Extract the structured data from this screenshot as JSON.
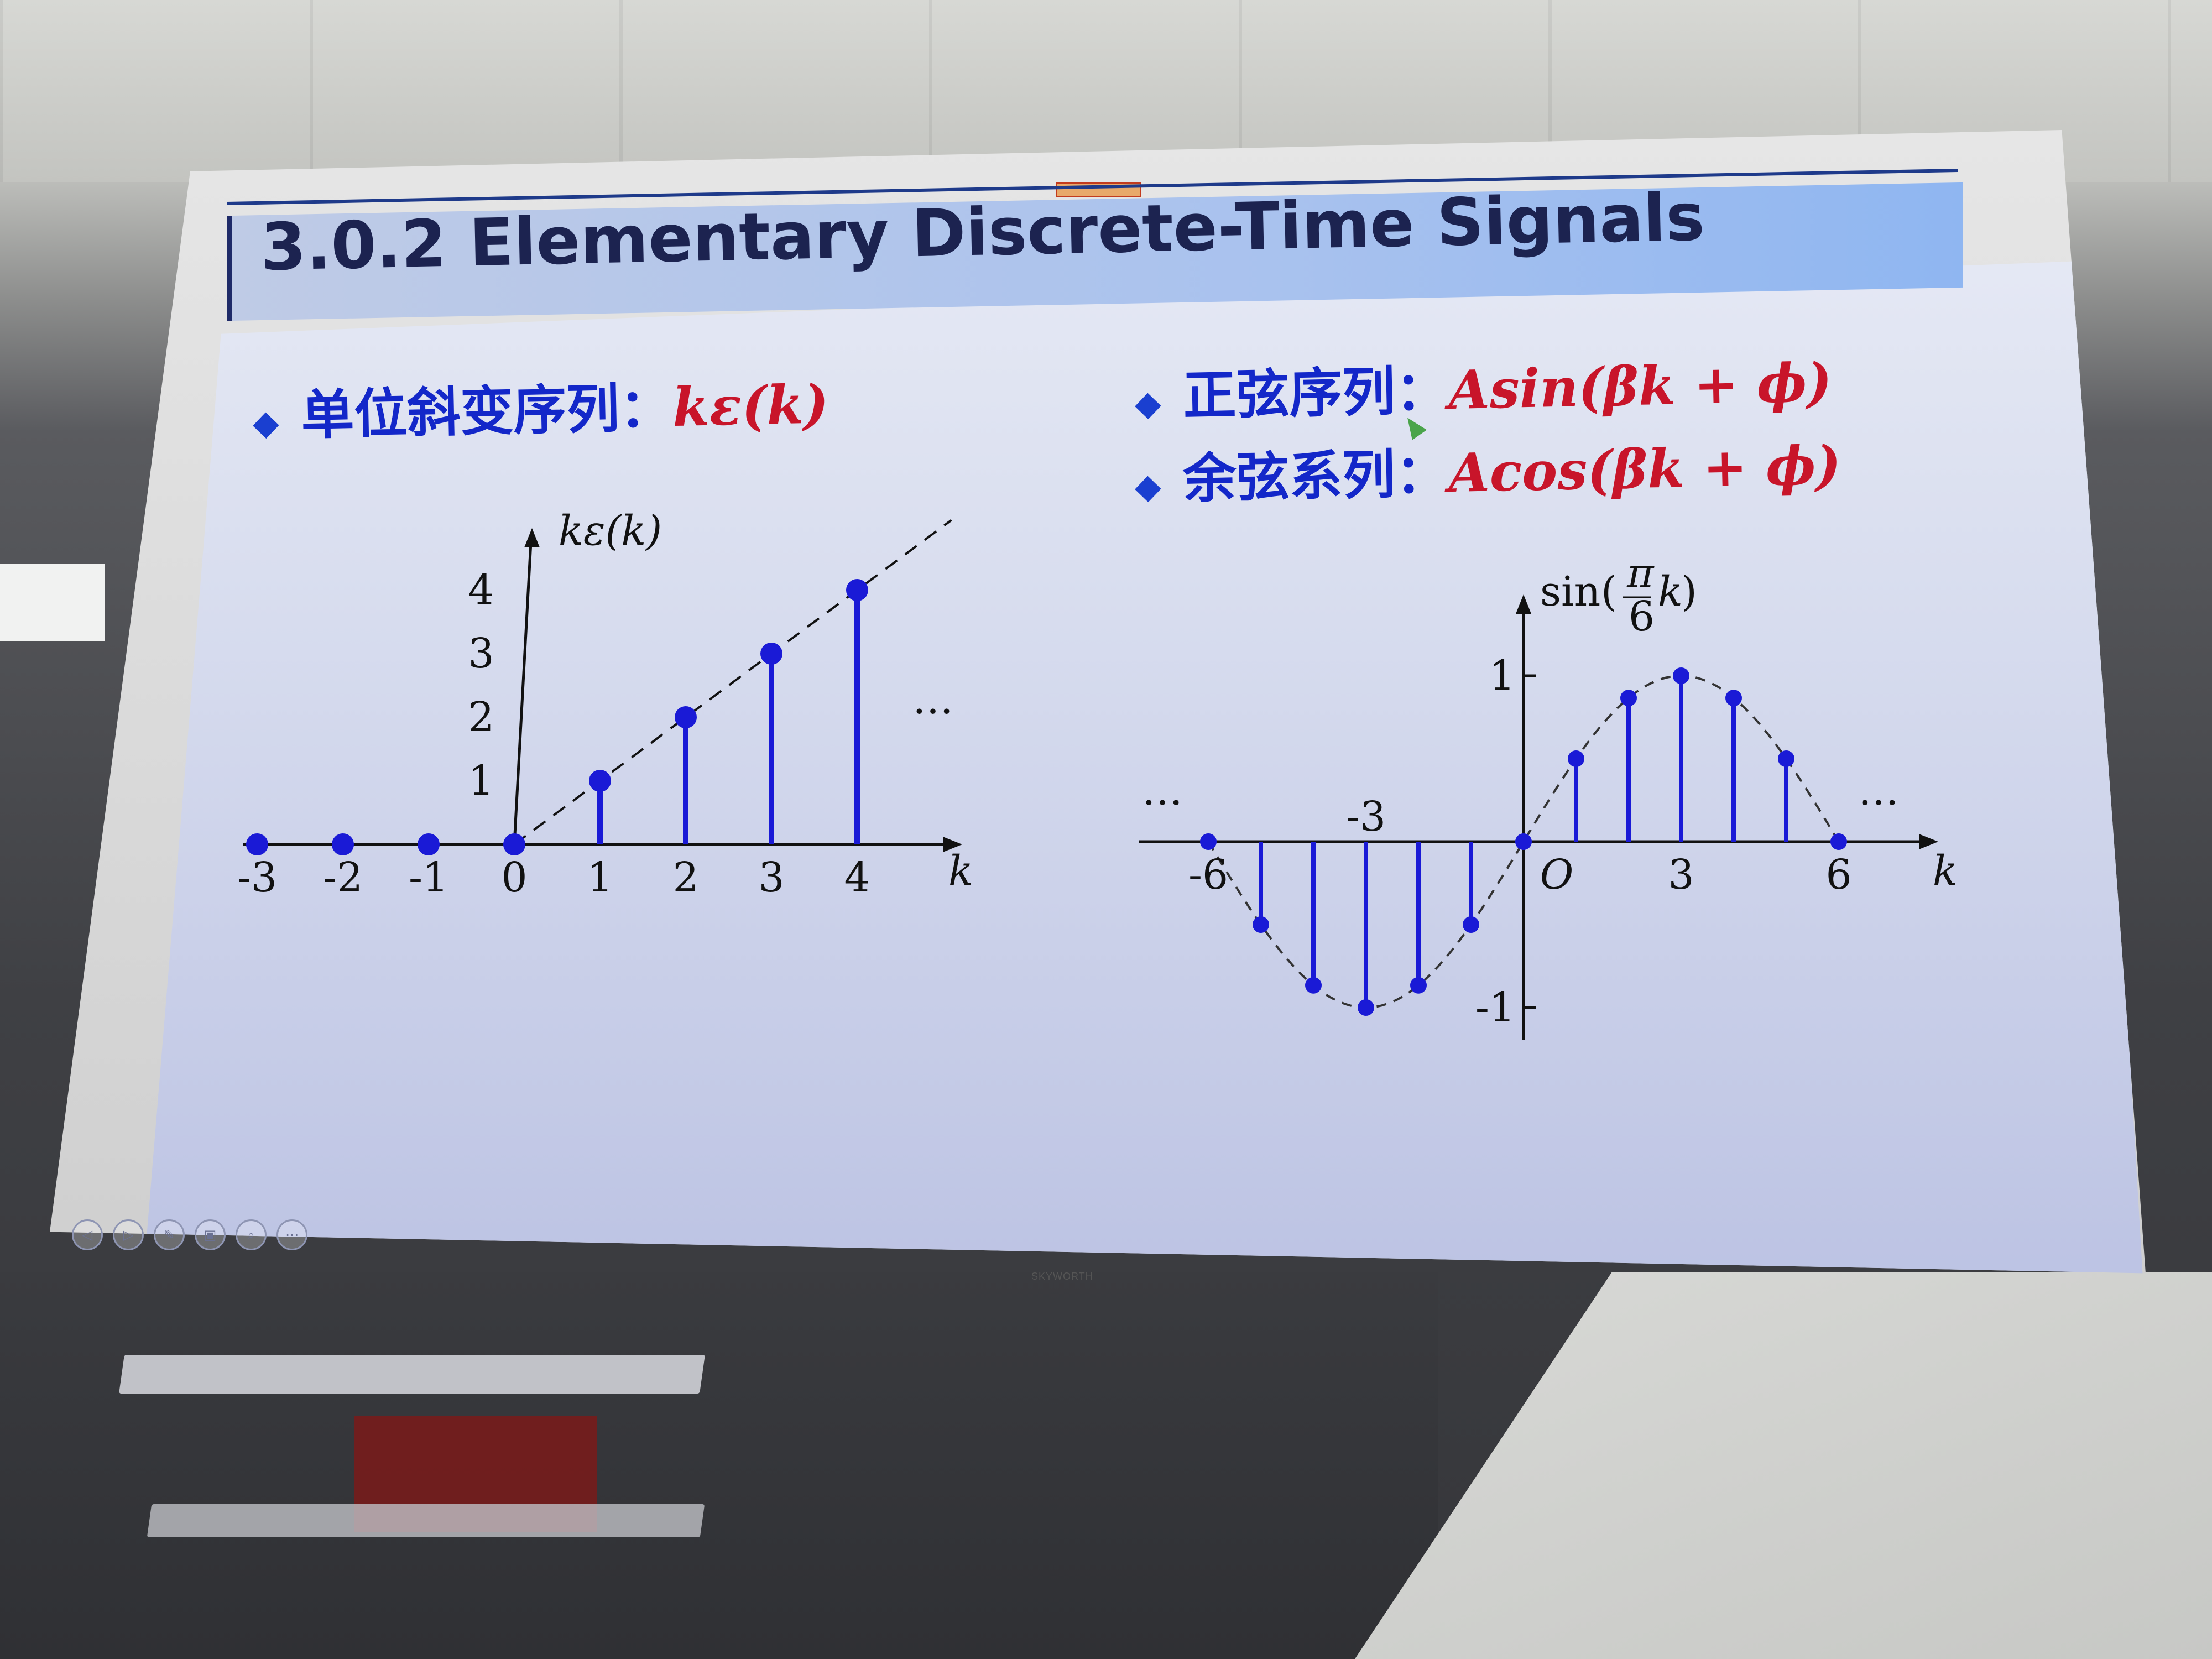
{
  "slide": {
    "title": "3.0.2 Elementary Discrete-Time Signals",
    "bullets": {
      "ramp_label": "单位斜变序列：",
      "ramp_formula": "kε(k)",
      "sin_label": "正弦序列：",
      "sin_formula": "Asin(βk + ϕ)",
      "cos_label": "余弦系列：",
      "cos_formula": "Acos(βk + ϕ)"
    },
    "bullet_symbol": "◆",
    "tv_brand": "SKYWORTH"
  },
  "toolbar": {
    "icons": [
      "prev-icon",
      "next-icon",
      "pen-icon",
      "slides-icon",
      "zoom-icon",
      "more-icon"
    ],
    "glyphs": [
      "◁",
      "▷",
      "✎",
      "▣",
      "⌕",
      "⋯"
    ]
  },
  "colors": {
    "stem": "#1a1ad6",
    "formula": "#c8152a",
    "cn_text": "#1327c9",
    "title_text": "#1c2350"
  },
  "chart_data": [
    {
      "type": "scatter",
      "style": "stem",
      "ylabel": "kε(k)",
      "xlabel": "k",
      "x": [
        -3,
        -2,
        -1,
        0,
        1,
        2,
        3,
        4
      ],
      "y": [
        0,
        0,
        0,
        0,
        1,
        2,
        3,
        4
      ],
      "xticks": [
        "-3",
        "-2",
        "-1",
        "0",
        "1",
        "2",
        "3",
        "4"
      ],
      "yticks": [
        "1",
        "2",
        "3",
        "4"
      ],
      "continuation": "…",
      "dashed_envelope": true,
      "xlim": [
        -3,
        5
      ],
      "ylim": [
        0,
        4.5
      ]
    },
    {
      "type": "scatter",
      "style": "stem",
      "ylabel_func": "sin",
      "ylabel_num": "π",
      "ylabel_den": "6",
      "ylabel_var": "k",
      "xlabel": "k",
      "x": [
        -6,
        -5,
        -4,
        -3,
        -2,
        -1,
        0,
        1,
        2,
        3,
        4,
        5,
        6
      ],
      "y": [
        0,
        -0.5,
        -0.866,
        -1,
        -0.866,
        -0.5,
        0,
        0.5,
        0.866,
        1,
        0.866,
        0.5,
        0
      ],
      "xticks": [
        "-6",
        "-3",
        "O",
        "3",
        "6"
      ],
      "yticks": [
        "1",
        "-1"
      ],
      "continuation_left": "…",
      "continuation_right": "…",
      "dashed_envelope": true,
      "xlim": [
        -6,
        8
      ],
      "ylim": [
        -1.2,
        1.2
      ]
    }
  ]
}
